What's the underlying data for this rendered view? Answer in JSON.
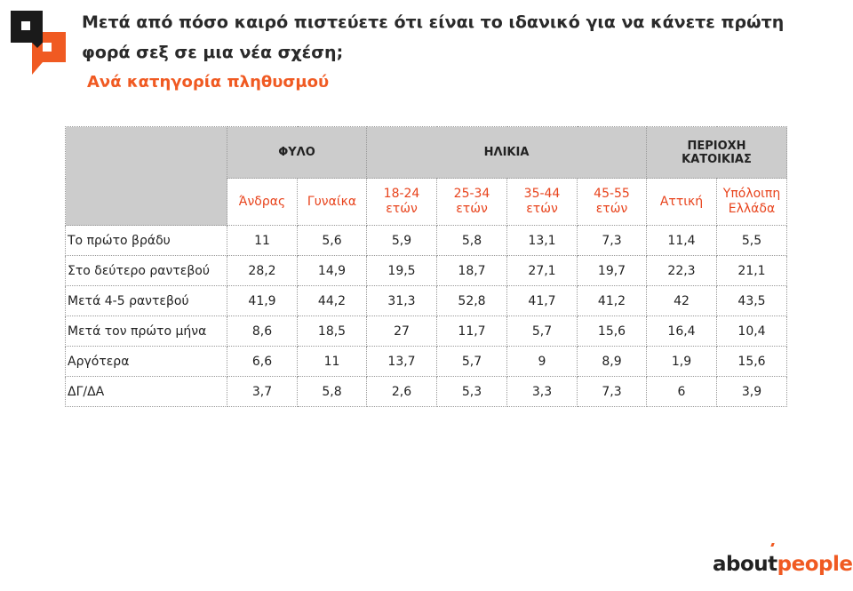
{
  "title": "Μετά από πόσο καιρό πιστεύετε ότι είναι το ιδανικό για να κάνετε πρώτη φορά σεξ σε μια νέα σχέση;",
  "subtitle": "Ανά κατηγορία πληθυσμού",
  "groups": [
    "ΦΥΛΟ",
    "ΗΛΙΚΙΑ",
    "ΠΕΡΙΟΧΗ ΚΑΤΟΙΚΙΑΣ"
  ],
  "columns": [
    "Άνδρας",
    "Γυναίκα",
    "18-24 ετών",
    "25-34 ετών",
    "35-44 ετών",
    "45-55 ετών",
    "Αττική",
    "Υπόλοιπη Ελλάδα"
  ],
  "rows": [
    {
      "label": "Το πρώτο βράδυ",
      "values": [
        "11",
        "5,6",
        "5,9",
        "5,8",
        "13,1",
        "7,3",
        "11,4",
        "5,5"
      ]
    },
    {
      "label": "Στο δεύτερο ραντεβού",
      "values": [
        "28,2",
        "14,9",
        "19,5",
        "18,7",
        "27,1",
        "19,7",
        "22,3",
        "21,1"
      ]
    },
    {
      "label": "Μετά 4-5 ραντεβού",
      "values": [
        "41,9",
        "44,2",
        "31,3",
        "52,8",
        "41,7",
        "41,2",
        "42",
        "43,5"
      ]
    },
    {
      "label": "Μετά τον πρώτο μήνα",
      "values": [
        "8,6",
        "18,5",
        "27",
        "11,7",
        "5,7",
        "15,6",
        "16,4",
        "10,4"
      ]
    },
    {
      "label": "Αργότερα",
      "values": [
        "6,6",
        "11",
        "13,7",
        "5,7",
        "9",
        "8,9",
        "1,9",
        "15,6"
      ]
    },
    {
      "label": "ΔΓ/ΔΑ",
      "values": [
        "3,7",
        "5,8",
        "2,6",
        "5,3",
        "3,3",
        "7,3",
        "6",
        "3,9"
      ]
    }
  ],
  "brand": {
    "part1": "about",
    "part2": "people"
  },
  "colors": {
    "accent": "#f05a22",
    "header_bg": "#cccccc"
  }
}
